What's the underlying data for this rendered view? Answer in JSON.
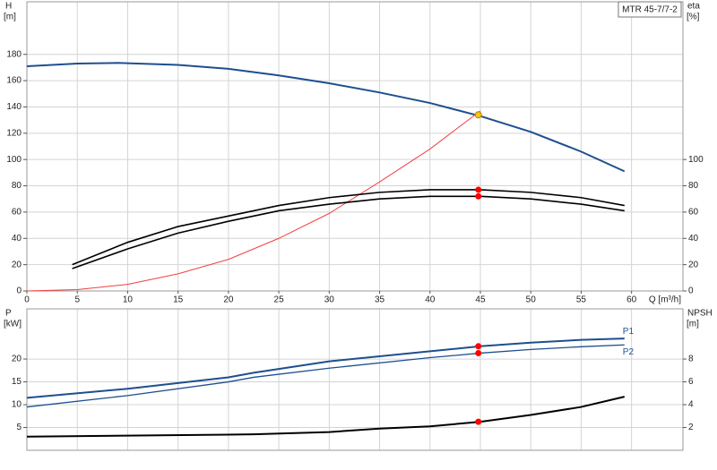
{
  "chart_data": [
    {
      "type": "line",
      "title": "MTR 45-7/7-2",
      "ylabel": "H",
      "yunit": "[m]",
      "y2label": "eta",
      "y2unit": "[%]",
      "xlabel": "Q [m³/h]",
      "xlim": [
        0,
        65.1
      ],
      "xticks": [
        0,
        5,
        10,
        15,
        20,
        25,
        30,
        35,
        40,
        45,
        50,
        55,
        60
      ],
      "ylim": [
        0,
        220
      ],
      "yticks": [
        0,
        20,
        40,
        60,
        80,
        100,
        120,
        140,
        160,
        180
      ],
      "y2lim": [
        0,
        220
      ],
      "y2ticks": [
        0,
        20,
        40,
        60,
        80,
        100
      ],
      "grid": true,
      "series": [
        {
          "color": "#1d4f8f",
          "width": 2,
          "x": [
            0,
            5,
            9,
            15,
            20,
            25,
            30,
            35,
            40,
            45,
            50,
            55,
            59.3
          ],
          "values": [
            171,
            173,
            173.5,
            172,
            169,
            164,
            158,
            151,
            143,
            133,
            121,
            106,
            91
          ]
        },
        {
          "color": "#f04040",
          "width": 1,
          "x": [
            0,
            5,
            10,
            15,
            20,
            25,
            30,
            35,
            40,
            45
          ],
          "values": [
            0,
            1,
            5,
            13,
            24,
            40,
            59,
            83,
            108,
            137
          ]
        },
        {
          "color": "#000000",
          "width": 1.6,
          "axis": "y2",
          "x": [
            4.5,
            10,
            15,
            20,
            22.5,
            25,
            30,
            35,
            40,
            45,
            50,
            55,
            59.3
          ],
          "values": [
            20,
            37,
            49,
            57,
            61,
            65,
            71,
            75,
            77,
            77,
            75,
            71,
            65
          ]
        },
        {
          "color": "#000000",
          "width": 1.6,
          "axis": "y2",
          "x": [
            4.5,
            10,
            15,
            20,
            22.5,
            25,
            30,
            35,
            40,
            45,
            50,
            55,
            59.3
          ],
          "values": [
            17,
            32,
            44,
            53,
            57,
            61,
            66,
            70,
            72,
            72,
            70,
            66,
            61
          ]
        }
      ],
      "markers": [
        {
          "x": 44.8,
          "value": 134,
          "color": "#f5c518"
        },
        {
          "x": 44.8,
          "value": 77,
          "axis": "y2",
          "color": "#ff0000"
        },
        {
          "x": 44.8,
          "value": 72,
          "axis": "y2",
          "color": "#ff0000"
        }
      ]
    },
    {
      "type": "line",
      "ylabel": "P",
      "yunit": "[kW]",
      "y2label": "NPSH",
      "y2unit": "[m]",
      "xlim": [
        0,
        65.1
      ],
      "xticks": [
        0,
        5,
        10,
        15,
        20,
        25,
        30,
        35,
        40,
        45,
        50,
        55,
        60
      ],
      "ylim": [
        0,
        31
      ],
      "yticks": [
        5,
        10,
        15,
        20
      ],
      "y2lim": [
        0,
        12.4
      ],
      "y2ticks": [
        2,
        4,
        6,
        8
      ],
      "grid": true,
      "series": [
        {
          "name": "P1",
          "color": "#1d4f8f",
          "width": 2,
          "x": [
            0,
            10,
            20,
            22.5,
            30,
            40,
            45,
            50,
            55,
            59.3
          ],
          "values": [
            11.5,
            13.5,
            16,
            17,
            19.5,
            21.7,
            22.8,
            23.6,
            24.2,
            24.5
          ]
        },
        {
          "name": "P2",
          "color": "#1d4f8f",
          "width": 1.3,
          "x": [
            0,
            10,
            20,
            22.5,
            30,
            40,
            45,
            50,
            55,
            59.3
          ],
          "values": [
            9.5,
            12,
            15,
            16,
            18,
            20.3,
            21.3,
            22.1,
            22.7,
            23.1
          ]
        },
        {
          "color": "#000000",
          "width": 2,
          "axis": "y2",
          "x": [
            0,
            22.5,
            30,
            35,
            40,
            45,
            50,
            55,
            59.3
          ],
          "values": [
            1.2,
            1.4,
            1.6,
            1.9,
            2.1,
            2.5,
            3.1,
            3.8,
            4.7
          ]
        }
      ],
      "markers": [
        {
          "x": 44.8,
          "value": 22.8,
          "color": "#ff0000"
        },
        {
          "x": 44.8,
          "value": 21.3,
          "color": "#ff0000"
        },
        {
          "x": 44.8,
          "value": 2.5,
          "axis": "y2",
          "color": "#ff0000"
        }
      ]
    }
  ]
}
